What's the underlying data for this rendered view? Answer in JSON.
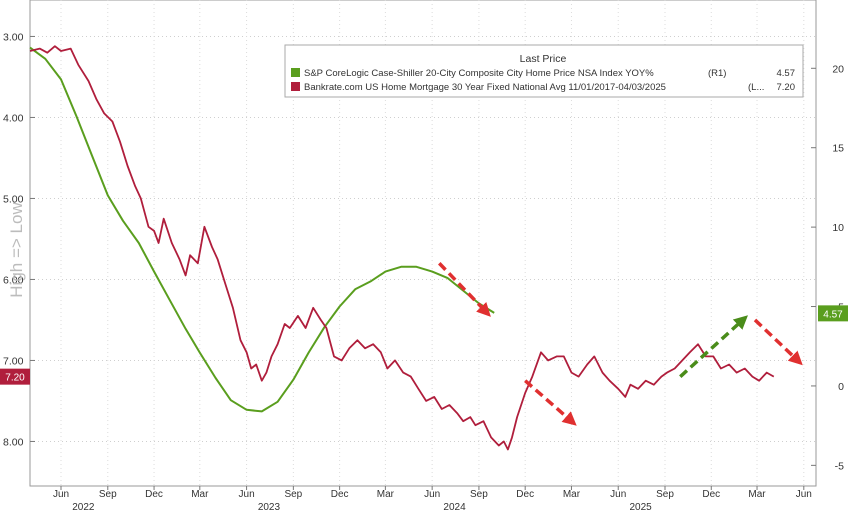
{
  "chart_data": {
    "type": "line",
    "legend": {
      "title": "Last Price",
      "position": "top-right",
      "entries": [
        {
          "label": "S&P CoreLogic Case-Shiller 20-City Composite City Home Price NSA Index YOY%",
          "axis_tag": "(R1)",
          "last": "4.57",
          "color": "#5a9e1e"
        },
        {
          "label": "Bankrate.com US Home Mortgage 30 Year Fixed National Avg 11/01/2017-04/03/2025",
          "axis_tag": "(L...",
          "last": "7.20",
          "color": "#b01e3c"
        }
      ]
    },
    "left_axis": {
      "ylabel": "High => Low",
      "inverted": true,
      "ylim": [
        2.55,
        8.55
      ],
      "ticks": [
        "3.00",
        "4.00",
        "5.00",
        "6.00",
        "7.00",
        "8.00"
      ],
      "last_value_tag": "7.20"
    },
    "right_axis": {
      "ylim": [
        -6.3,
        24.3
      ],
      "ticks": [
        "20",
        "15",
        "10",
        "5",
        "0",
        "-5"
      ],
      "last_value_tag": "4.57"
    },
    "x_axis": {
      "range": [
        "2021-04-01",
        "2025-06-25"
      ],
      "month_ticks": [
        {
          "label": "Jun",
          "date": "2021-06-01"
        },
        {
          "label": "Sep",
          "date": "2021-09-01"
        },
        {
          "label": "Dec",
          "date": "2021-12-01"
        },
        {
          "label": "Mar",
          "date": "2022-03-01"
        },
        {
          "label": "Jun",
          "date": "2022-06-01"
        },
        {
          "label": "Sep",
          "date": "2022-09-01"
        },
        {
          "label": "Dec",
          "date": "2022-12-01"
        },
        {
          "label": "Mar",
          "date": "2023-03-01"
        },
        {
          "label": "Jun",
          "date": "2023-06-01"
        },
        {
          "label": "Sep",
          "date": "2023-09-01"
        },
        {
          "label": "Dec",
          "date": "2023-12-01"
        },
        {
          "label": "Mar",
          "date": "2024-03-01"
        },
        {
          "label": "Jun",
          "date": "2024-06-01"
        },
        {
          "label": "Sep",
          "date": "2024-09-01"
        },
        {
          "label": "Dec",
          "date": "2024-12-01"
        },
        {
          "label": "Mar",
          "date": "2025-03-01"
        },
        {
          "label": "Jun",
          "date": "2025-06-01"
        }
      ],
      "year_ticks": [
        {
          "label": "2022",
          "date": "2021-07-15"
        },
        {
          "label": "2023",
          "date": "2022-07-15"
        },
        {
          "label": "2024",
          "date": "2023-07-15"
        },
        {
          "label": "2025",
          "date": "2024-07-15"
        }
      ]
    },
    "series": [
      {
        "name": "S&P CoreLogic Case-Shiller 20-City Composite City Home Price NSA Index YOY%",
        "axis": "right",
        "color": "#5a9e1e",
        "points": [
          [
            "2021-04-01",
            21.3
          ],
          [
            "2021-05-01",
            20.6
          ],
          [
            "2021-06-01",
            19.3
          ],
          [
            "2021-07-01",
            17.0
          ],
          [
            "2021-08-01",
            14.5
          ],
          [
            "2021-09-01",
            12.0
          ],
          [
            "2021-10-01",
            10.4
          ],
          [
            "2021-11-01",
            9.0
          ],
          [
            "2021-12-01",
            7.2
          ],
          [
            "2022-01-01",
            5.4
          ],
          [
            "2022-02-01",
            3.6
          ],
          [
            "2022-03-01",
            2.1
          ],
          [
            "2022-04-01",
            0.5
          ],
          [
            "2022-05-01",
            -0.9
          ],
          [
            "2022-06-01",
            -1.5
          ],
          [
            "2022-07-01",
            -1.6
          ],
          [
            "2022-08-01",
            -1.0
          ],
          [
            "2022-09-01",
            0.4
          ],
          [
            "2022-10-01",
            2.1
          ],
          [
            "2022-11-01",
            3.7
          ],
          [
            "2022-12-01",
            5.0
          ],
          [
            "2023-01-01",
            6.1
          ],
          [
            "2023-02-01",
            6.6
          ],
          [
            "2023-03-01",
            7.2
          ],
          [
            "2023-04-01",
            7.5
          ],
          [
            "2023-05-01",
            7.5
          ],
          [
            "2023-06-01",
            7.2
          ],
          [
            "2023-07-01",
            6.8
          ],
          [
            "2023-08-01",
            6.0
          ],
          [
            "2023-09-01",
            5.2
          ],
          [
            "2023-10-01",
            4.6
          ]
        ]
      },
      {
        "name": "Bankrate.com US Home Mortgage 30 Year Fixed National Avg 11/01/2017-04/03/2025",
        "axis": "left",
        "color": "#b01e3c",
        "points": [
          [
            "2021-04-01",
            3.18
          ],
          [
            "2021-04-20",
            3.15
          ],
          [
            "2021-05-05",
            3.2
          ],
          [
            "2021-05-20",
            3.12
          ],
          [
            "2021-06-01",
            3.18
          ],
          [
            "2021-06-20",
            3.15
          ],
          [
            "2021-07-05",
            3.35
          ],
          [
            "2021-07-25",
            3.55
          ],
          [
            "2021-08-10",
            3.78
          ],
          [
            "2021-08-25",
            3.95
          ],
          [
            "2021-09-10",
            4.05
          ],
          [
            "2021-09-25",
            4.3
          ],
          [
            "2021-10-10",
            4.6
          ],
          [
            "2021-10-25",
            4.85
          ],
          [
            "2021-11-05",
            5.0
          ],
          [
            "2021-11-20",
            5.35
          ],
          [
            "2021-12-01",
            5.4
          ],
          [
            "2021-12-10",
            5.55
          ],
          [
            "2021-12-20",
            5.25
          ],
          [
            "2022-01-05",
            5.55
          ],
          [
            "2022-01-20",
            5.75
          ],
          [
            "2022-02-01",
            5.95
          ],
          [
            "2022-02-10",
            5.7
          ],
          [
            "2022-02-25",
            5.8
          ],
          [
            "2022-03-10",
            5.35
          ],
          [
            "2022-03-25",
            5.6
          ],
          [
            "2022-04-05",
            5.75
          ],
          [
            "2022-04-20",
            6.05
          ],
          [
            "2022-05-05",
            6.35
          ],
          [
            "2022-05-20",
            6.75
          ],
          [
            "2022-06-01",
            6.9
          ],
          [
            "2022-06-10",
            7.1
          ],
          [
            "2022-06-20",
            7.05
          ],
          [
            "2022-07-01",
            7.25
          ],
          [
            "2022-07-10",
            7.15
          ],
          [
            "2022-07-20",
            6.95
          ],
          [
            "2022-08-01",
            6.8
          ],
          [
            "2022-08-15",
            6.55
          ],
          [
            "2022-08-25",
            6.6
          ],
          [
            "2022-09-10",
            6.45
          ],
          [
            "2022-09-25",
            6.6
          ],
          [
            "2022-10-10",
            6.35
          ],
          [
            "2022-10-25",
            6.5
          ],
          [
            "2022-11-05",
            6.6
          ],
          [
            "2022-11-20",
            6.95
          ],
          [
            "2022-12-05",
            7.0
          ],
          [
            "2022-12-20",
            6.85
          ],
          [
            "2023-01-05",
            6.75
          ],
          [
            "2023-01-20",
            6.85
          ],
          [
            "2023-02-05",
            6.8
          ],
          [
            "2023-02-20",
            6.9
          ],
          [
            "2023-03-05",
            7.1
          ],
          [
            "2023-03-20",
            7.0
          ],
          [
            "2023-04-05",
            7.15
          ],
          [
            "2023-04-20",
            7.2
          ],
          [
            "2023-05-05",
            7.35
          ],
          [
            "2023-05-20",
            7.5
          ],
          [
            "2023-06-05",
            7.45
          ],
          [
            "2023-06-20",
            7.6
          ],
          [
            "2023-07-05",
            7.55
          ],
          [
            "2023-07-20",
            7.65
          ],
          [
            "2023-08-01",
            7.75
          ],
          [
            "2023-08-15",
            7.7
          ],
          [
            "2023-08-25",
            7.8
          ],
          [
            "2023-09-10",
            7.75
          ],
          [
            "2023-09-25",
            7.95
          ],
          [
            "2023-10-10",
            8.05
          ],
          [
            "2023-10-20",
            8.0
          ],
          [
            "2023-10-28",
            8.1
          ],
          [
            "2023-11-05",
            7.95
          ],
          [
            "2023-11-15",
            7.7
          ],
          [
            "2023-12-01",
            7.4
          ],
          [
            "2023-12-15",
            7.2
          ],
          [
            "2024-01-01",
            6.9
          ],
          [
            "2024-01-15",
            7.0
          ],
          [
            "2024-02-01",
            6.95
          ],
          [
            "2024-02-15",
            6.95
          ],
          [
            "2024-03-01",
            7.15
          ],
          [
            "2024-03-15",
            7.2
          ],
          [
            "2024-04-01",
            7.05
          ],
          [
            "2024-04-15",
            6.95
          ],
          [
            "2024-05-01",
            7.15
          ],
          [
            "2024-05-15",
            7.25
          ],
          [
            "2024-06-01",
            7.35
          ],
          [
            "2024-06-15",
            7.45
          ],
          [
            "2024-06-25",
            7.3
          ],
          [
            "2024-07-10",
            7.35
          ],
          [
            "2024-07-25",
            7.25
          ],
          [
            "2024-08-10",
            7.3
          ],
          [
            "2024-08-25",
            7.2
          ],
          [
            "2024-09-05",
            7.15
          ],
          [
            "2024-09-20",
            7.1
          ],
          [
            "2024-10-05",
            7.0
          ],
          [
            "2024-10-20",
            6.9
          ],
          [
            "2024-11-05",
            6.8
          ],
          [
            "2024-11-20",
            6.95
          ],
          [
            "2024-12-05",
            6.95
          ],
          [
            "2024-12-20",
            7.1
          ],
          [
            "2025-01-05",
            7.05
          ],
          [
            "2025-01-20",
            7.15
          ],
          [
            "2025-02-05",
            7.1
          ],
          [
            "2025-02-20",
            7.2
          ],
          [
            "2025-03-05",
            7.25
          ],
          [
            "2025-03-20",
            7.15
          ],
          [
            "2025-04-03",
            7.2
          ]
        ]
      }
    ],
    "annotations": [
      {
        "type": "arrow",
        "color": "#e03030",
        "style": "dashed",
        "from": [
          "2023-06-15",
          5.8
        ],
        "to": [
          "2023-09-15",
          6.4
        ],
        "axis": "left"
      },
      {
        "type": "arrow",
        "color": "#e03030",
        "style": "dashed",
        "from": [
          "2023-12-01",
          7.25
        ],
        "to": [
          "2024-03-01",
          7.75
        ],
        "axis": "left"
      },
      {
        "type": "arrow",
        "color": "#4a8c1a",
        "style": "dashed",
        "from": [
          "2024-10-01",
          7.2
        ],
        "to": [
          "2025-02-01",
          6.5
        ],
        "axis": "left"
      },
      {
        "type": "arrow",
        "color": "#e03030",
        "style": "dashed",
        "from": [
          "2025-02-25",
          6.5
        ],
        "to": [
          "2025-05-20",
          7.0
        ],
        "axis": "left"
      }
    ]
  }
}
